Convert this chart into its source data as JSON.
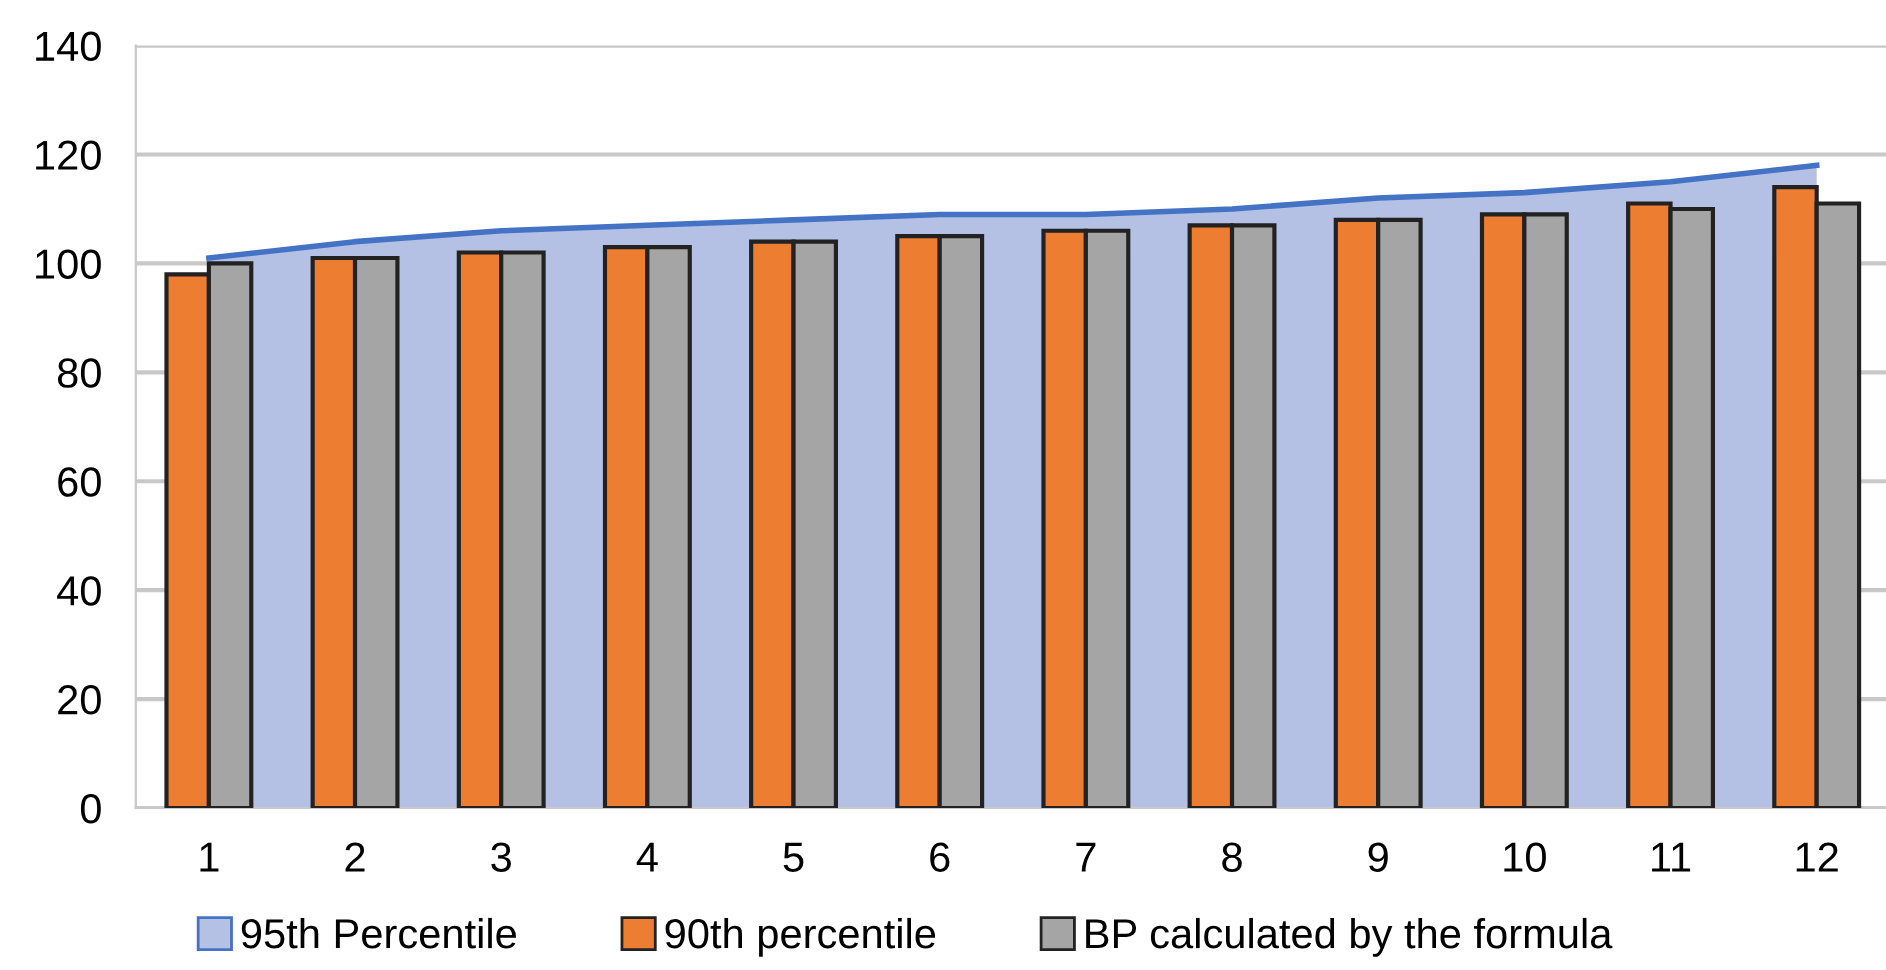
{
  "chart_data": {
    "type": "bar",
    "categories": [
      "1",
      "2",
      "3",
      "4",
      "5",
      "6",
      "7",
      "8",
      "9",
      "10",
      "11",
      "12"
    ],
    "series": [
      {
        "name": "95th Percentile",
        "type": "area",
        "color": "#b4c0e4",
        "values": [
          101,
          104,
          106,
          107,
          108,
          109,
          109,
          110,
          112,
          113,
          115,
          118
        ]
      },
      {
        "name": "90th percentile",
        "color": "#ed7d31",
        "values": [
          98,
          101,
          102,
          103,
          104,
          105,
          106,
          107,
          108,
          109,
          111,
          114
        ]
      },
      {
        "name": "BP calculated by the formula",
        "color": "#a5a5a5",
        "values": [
          100,
          101,
          102,
          103,
          104,
          105,
          106,
          107,
          108,
          109,
          110,
          111
        ]
      }
    ],
    "ylim": [
      0,
      140
    ],
    "yticks": [
      0,
      20,
      40,
      60,
      80,
      100,
      120,
      140
    ],
    "grid": "y",
    "legend": "bottom"
  }
}
